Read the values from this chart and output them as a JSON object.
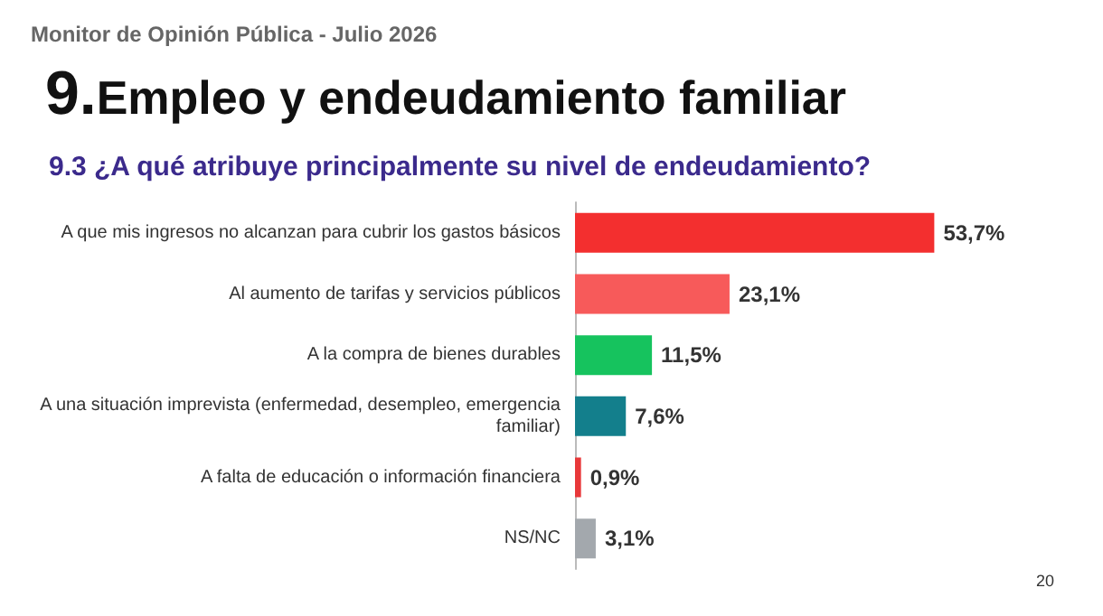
{
  "chart_data": {
    "type": "bar",
    "orientation": "horizontal",
    "title": "9.Empleo y endeudamiento familiar",
    "subtitle": "9.3 ¿A qué atribuye principalmente su nivel de endeudamiento?",
    "categories": [
      "A que mis ingresos no alcanzan para cubrir los gastos básicos",
      "Al aumento de tarifas y servicios públicos",
      "A la compra de bienes durables",
      "A una situación imprevista (enfermedad, desempleo, emergencia familiar)",
      "A falta de educación o información financiera",
      "NS/NC"
    ],
    "values": [
      53.7,
      23.1,
      11.5,
      7.6,
      0.9,
      3.1
    ],
    "colors": [
      "#f32f2f",
      "#f75a5a",
      "#16c35e",
      "#137f8c",
      "#e8383a",
      "#a3a8ad"
    ],
    "value_labels": [
      "53,7%",
      "23,1%",
      "11,5%",
      "7,6%",
      "0,9%",
      "3,1%"
    ],
    "annotations": [
      "Monitor de Opinión Pública - Julio 2026",
      "20"
    ]
  }
}
